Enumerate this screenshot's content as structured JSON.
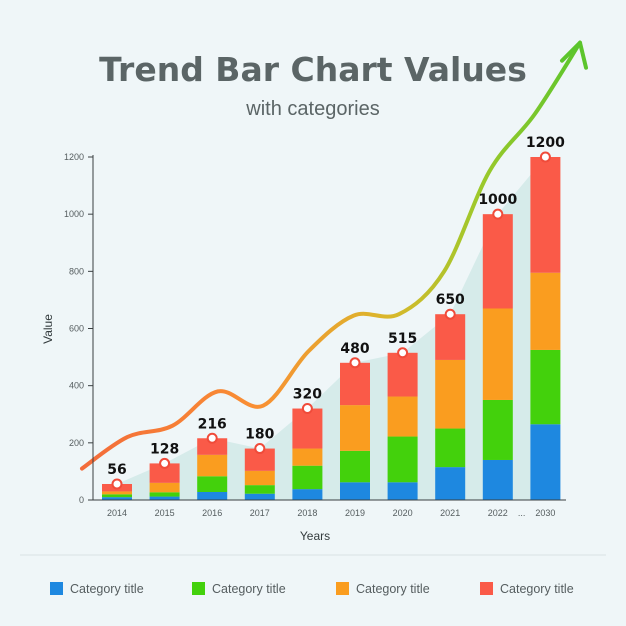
{
  "header": {
    "title": "Trend Bar Chart Values",
    "subtitle": "with categories"
  },
  "chart_data": {
    "type": "bar",
    "stacked": true,
    "title": "Trend Bar Chart Values",
    "subtitle": "with categories",
    "xlabel": "Years",
    "ylabel": "Value",
    "ylim": [
      0,
      1200
    ],
    "yticks": [
      0,
      200,
      400,
      600,
      800,
      1000,
      1200
    ],
    "categories": [
      "2014",
      "2015",
      "2016",
      "2017",
      "2018",
      "2019",
      "2020",
      "2021",
      "2022",
      "2030"
    ],
    "axis_break_label": "...",
    "totals": [
      56,
      128,
      216,
      180,
      320,
      480,
      515,
      650,
      1000,
      1200
    ],
    "series": [
      {
        "name": "Category title",
        "color": "#1e88e0",
        "values": [
          10,
          12,
          28,
          22,
          38,
          62,
          62,
          115,
          140,
          265
        ]
      },
      {
        "name": "Category title",
        "color": "#43d10c",
        "values": [
          10,
          15,
          55,
          30,
          82,
          110,
          160,
          135,
          210,
          260
        ]
      },
      {
        "name": "Category title",
        "color": "#fa9d1f",
        "values": [
          10,
          33,
          75,
          50,
          60,
          160,
          140,
          240,
          320,
          270
        ]
      },
      {
        "name": "Category title",
        "color": "#fa5a48",
        "values": [
          26,
          68,
          58,
          78,
          140,
          148,
          153,
          160,
          330,
          405
        ]
      }
    ],
    "legend": {
      "position": "bottom"
    },
    "grid": false,
    "trend_line": {
      "values": [
        110,
        220,
        260,
        380,
        330,
        520,
        645,
        650,
        800,
        1150,
        1350,
        1600
      ]
    }
  }
}
